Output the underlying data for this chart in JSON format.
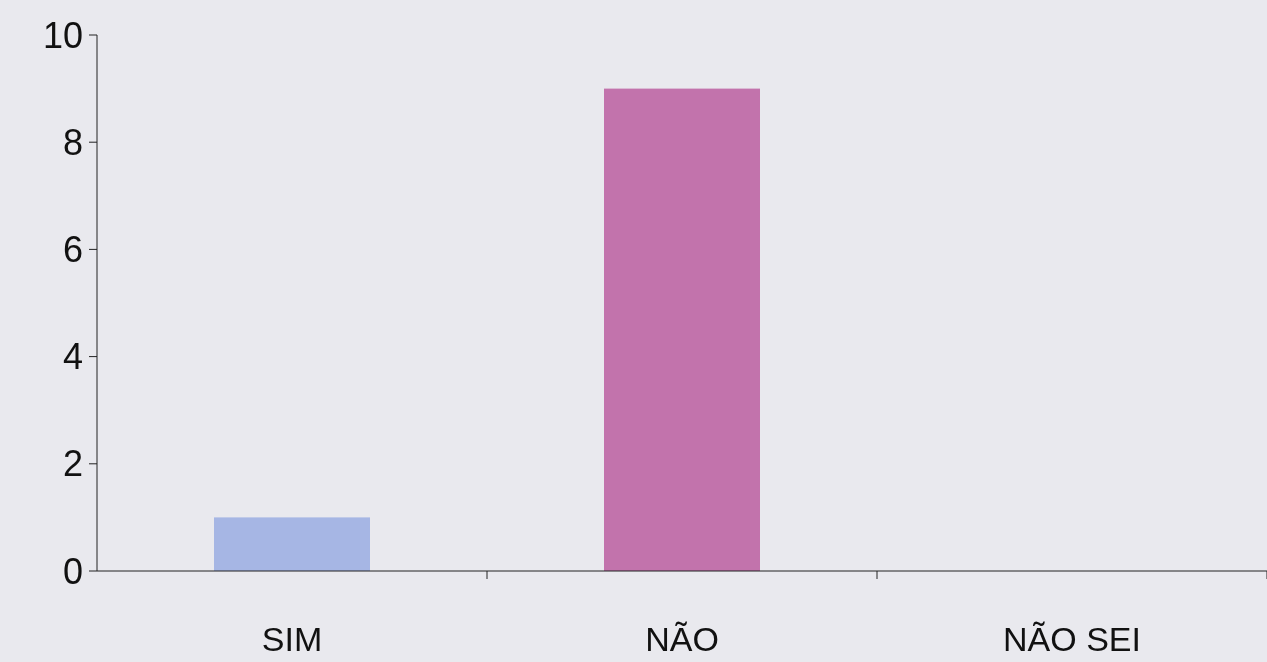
{
  "chart_data": {
    "type": "bar",
    "categories": [
      "SIM",
      "NÃO",
      "NÃO SEI"
    ],
    "values": [
      1,
      9,
      0
    ],
    "colors": [
      "#a6b6e4",
      "#c273ac",
      "#c273ac"
    ],
    "ylim": [
      0,
      10
    ],
    "yticks": [
      0,
      2,
      4,
      6,
      8,
      10
    ],
    "grid": false
  }
}
